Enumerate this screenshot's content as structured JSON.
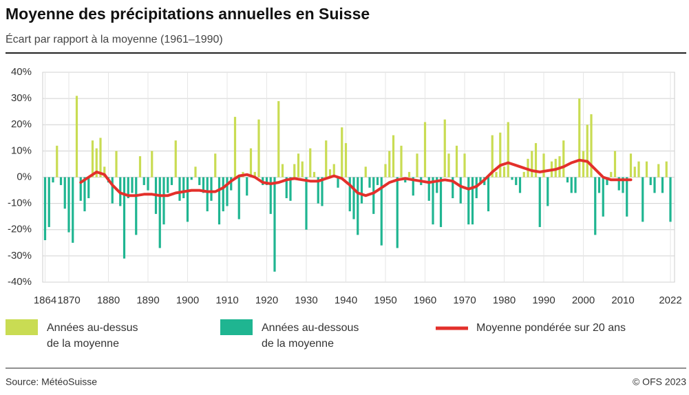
{
  "chart_data": {
    "type": "bar",
    "title": "Moyenne des précipitations annuelles en Suisse",
    "subtitle": "Écart par rapport à la moyenne (1961–1990)",
    "x": [
      1864,
      1865,
      1866,
      1867,
      1868,
      1869,
      1870,
      1871,
      1872,
      1873,
      1874,
      1875,
      1876,
      1877,
      1878,
      1879,
      1880,
      1881,
      1882,
      1883,
      1884,
      1885,
      1886,
      1887,
      1888,
      1889,
      1890,
      1891,
      1892,
      1893,
      1894,
      1895,
      1896,
      1897,
      1898,
      1899,
      1900,
      1901,
      1902,
      1903,
      1904,
      1905,
      1906,
      1907,
      1908,
      1909,
      1910,
      1911,
      1912,
      1913,
      1914,
      1915,
      1916,
      1917,
      1918,
      1919,
      1920,
      1921,
      1922,
      1923,
      1924,
      1925,
      1926,
      1927,
      1928,
      1929,
      1930,
      1931,
      1932,
      1933,
      1934,
      1935,
      1936,
      1937,
      1938,
      1939,
      1940,
      1941,
      1942,
      1943,
      1944,
      1945,
      1946,
      1947,
      1948,
      1949,
      1950,
      1951,
      1952,
      1953,
      1954,
      1955,
      1956,
      1957,
      1958,
      1959,
      1960,
      1961,
      1962,
      1963,
      1964,
      1965,
      1966,
      1967,
      1968,
      1969,
      1970,
      1971,
      1972,
      1973,
      1974,
      1975,
      1976,
      1977,
      1978,
      1979,
      1980,
      1981,
      1982,
      1983,
      1984,
      1985,
      1986,
      1987,
      1988,
      1989,
      1990,
      1991,
      1992,
      1993,
      1994,
      1995,
      1996,
      1997,
      1998,
      1999,
      2000,
      2001,
      2002,
      2003,
      2004,
      2005,
      2006,
      2007,
      2008,
      2009,
      2010,
      2011,
      2012,
      2013,
      2014,
      2015,
      2016,
      2017,
      2018,
      2019,
      2020,
      2021,
      2022
    ],
    "values": [
      -24,
      -19,
      -2,
      12,
      -3,
      -12,
      -21,
      -25,
      31,
      -9,
      -13,
      -8,
      14,
      11,
      15,
      4,
      -2,
      -10,
      10,
      -11,
      -31,
      -8,
      -6,
      -22,
      8,
      -3,
      -5,
      10,
      -14,
      -27,
      -18,
      -6,
      -3,
      14,
      -9,
      -8,
      -17,
      -1,
      4,
      -3,
      -6,
      -13,
      -9,
      9,
      -18,
      -13,
      -11,
      -5,
      23,
      -16,
      2,
      -7,
      11,
      2,
      22,
      -3,
      -3,
      -14,
      -36,
      29,
      5,
      -8,
      -9,
      5,
      9,
      6,
      -20,
      11,
      2,
      -10,
      -11,
      14,
      3,
      5,
      -4,
      19,
      13,
      -13,
      -16,
      -22,
      -10,
      4,
      -4,
      -14,
      -3,
      -26,
      5,
      10,
      16,
      -27,
      12,
      -2,
      2,
      -7,
      9,
      -3,
      21,
      -9,
      -18,
      -6,
      -19,
      22,
      9,
      -8,
      12,
      -10,
      9,
      -18,
      -18,
      -8,
      -2,
      -3,
      -13,
      16,
      2,
      17,
      4,
      21,
      -1,
      -3,
      -6,
      2,
      7,
      10,
      13,
      -19,
      9,
      -11,
      6,
      7,
      8,
      14,
      -2,
      -6,
      -6,
      30,
      10,
      20,
      24,
      -22,
      -6,
      -15,
      -3,
      2,
      10,
      -5,
      -6,
      -15,
      9,
      4,
      6,
      -17,
      6,
      -3,
      -6,
      5,
      -6,
      6,
      -17
    ],
    "above": {
      "name": "Années au-dessus de la moyenne",
      "color": "#c9dc53"
    },
    "below": {
      "name": "Années au-dessous de la moyenne",
      "color": "#1fb591"
    },
    "trend": {
      "name": "Moyenne pondérée sur 20 ans",
      "color": "#e3302b",
      "x": [
        1873,
        1875,
        1877,
        1879,
        1881,
        1883,
        1885,
        1887,
        1889,
        1891,
        1893,
        1895,
        1897,
        1899,
        1901,
        1903,
        1905,
        1907,
        1909,
        1911,
        1913,
        1915,
        1917,
        1919,
        1921,
        1923,
        1925,
        1927,
        1929,
        1931,
        1933,
        1935,
        1937,
        1939,
        1941,
        1943,
        1945,
        1947,
        1949,
        1951,
        1953,
        1955,
        1957,
        1959,
        1961,
        1963,
        1965,
        1967,
        1969,
        1971,
        1973,
        1975,
        1977,
        1979,
        1981,
        1983,
        1985,
        1987,
        1989,
        1991,
        1993,
        1995,
        1997,
        1999,
        2001,
        2003,
        2005,
        2007,
        2009,
        2011,
        2012
      ],
      "values": [
        -2,
        0,
        2,
        1,
        -3,
        -6,
        -7,
        -7,
        -6.5,
        -6.5,
        -7,
        -7,
        -6,
        -5.5,
        -5,
        -5,
        -5.5,
        -5.5,
        -4,
        -1.5,
        0.5,
        1,
        0,
        -2,
        -2.5,
        -2,
        -1,
        -0.5,
        -1,
        -1.5,
        -1.5,
        -0.5,
        0.5,
        -0.5,
        -3,
        -6,
        -7,
        -6,
        -4,
        -2,
        -1,
        -0.5,
        -1,
        -1.5,
        -2,
        -1.5,
        -1,
        -1.5,
        -3.5,
        -4.5,
        -3.5,
        -1,
        2,
        4.5,
        5.5,
        4.5,
        3.5,
        2.5,
        2,
        2.5,
        3,
        4,
        5.5,
        6.5,
        6,
        3,
        0,
        -1,
        -1,
        -1,
        -1
      ]
    },
    "xlim": [
      1864,
      2022
    ],
    "xticks": [
      1864,
      1870,
      1880,
      1890,
      1900,
      1910,
      1920,
      1930,
      1940,
      1950,
      1960,
      1970,
      1980,
      1990,
      2000,
      2010,
      2022
    ],
    "ylim": [
      -40,
      40
    ],
    "yticks": [
      {
        "value": 40,
        "label": "40%"
      },
      {
        "value": 30,
        "label": "30%"
      },
      {
        "value": 20,
        "label": "20%"
      },
      {
        "value": 10,
        "label": "10%"
      },
      {
        "value": 0,
        "label": "0%"
      },
      {
        "value": -10,
        "label": "-10%"
      },
      {
        "value": -20,
        "label": "-20%"
      },
      {
        "value": -30,
        "label": "-30%"
      },
      {
        "value": -40,
        "label": "-40%"
      }
    ],
    "grid": true,
    "source": "Source: MétéoSuisse",
    "copyright": "© OFS 2023"
  }
}
